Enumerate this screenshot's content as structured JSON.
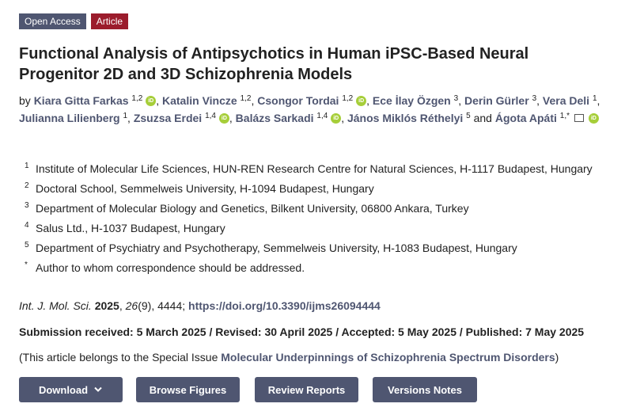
{
  "badges": {
    "open_access": "Open Access",
    "type": "Article"
  },
  "title": "Functional Analysis of Antipsychotics in Human iPSC-Based Neural Progenitor 2D and 3D Schizophrenia Models",
  "authors_prefix": "by",
  "authors": [
    {
      "name": "Kiara Gitta Farkas",
      "sup": "1,2",
      "orcid": true
    },
    {
      "name": "Katalin Vincze",
      "sup": "1,2",
      "orcid": false
    },
    {
      "name": "Csongor Tordai",
      "sup": "1,2",
      "orcid": true
    },
    {
      "name": "Ece İlay Özgen",
      "sup": "3",
      "orcid": false
    },
    {
      "name": "Derin Gürler",
      "sup": "3",
      "orcid": false
    },
    {
      "name": "Vera Deli",
      "sup": "1",
      "orcid": false
    },
    {
      "name": "Julianna Lilienberg",
      "sup": "1",
      "orcid": false
    },
    {
      "name": "Zsuzsa Erdei",
      "sup": "1,4",
      "orcid": true
    },
    {
      "name": "Balázs Sarkadi",
      "sup": "1,4",
      "orcid": true
    },
    {
      "name": "János Miklós Réthelyi",
      "sup": "5",
      "orcid": false
    },
    {
      "name": "Ágota Apáti",
      "sup": "1,*",
      "orcid": true,
      "email": true
    }
  ],
  "and": "and",
  "affiliations": [
    {
      "n": "1",
      "text": "Institute of Molecular Life Sciences, HUN-REN Research Centre for Natural Sciences, H-1117 Budapest, Hungary"
    },
    {
      "n": "2",
      "text": "Doctoral School, Semmelweis University, H-1094 Budapest, Hungary"
    },
    {
      "n": "3",
      "text": "Department of Molecular Biology and Genetics, Bilkent University, 06800 Ankara, Turkey"
    },
    {
      "n": "4",
      "text": "Salus Ltd., H-1037 Budapest, Hungary"
    },
    {
      "n": "5",
      "text": "Department of Psychiatry and Psychotherapy, Semmelweis University, H-1083 Budapest, Hungary"
    },
    {
      "n": "*",
      "text": "Author to whom correspondence should be addressed."
    }
  ],
  "citation": {
    "journal": "Int. J. Mol. Sci.",
    "year": "2025",
    "volume": "26",
    "issue_pages": "(9), 4444;",
    "doi": "https://doi.org/10.3390/ijms26094444"
  },
  "dates": "Submission received: 5 March 2025 / Revised: 30 April 2025 / Accepted: 5 May 2025 / Published: 7 May 2025",
  "special_issue": {
    "prefix": "(This article belongs to the Special Issue ",
    "name": "Molecular Underpinnings of Schizophrenia Spectrum Disorders",
    "suffix": ")"
  },
  "buttons": {
    "download": "Download",
    "browse": "Browse Figures",
    "review": "Review Reports",
    "versions": "Versions Notes"
  },
  "colors": {
    "accent": "#4f5671",
    "article": "#9b1c2c",
    "orcid": "#a6ce39"
  }
}
